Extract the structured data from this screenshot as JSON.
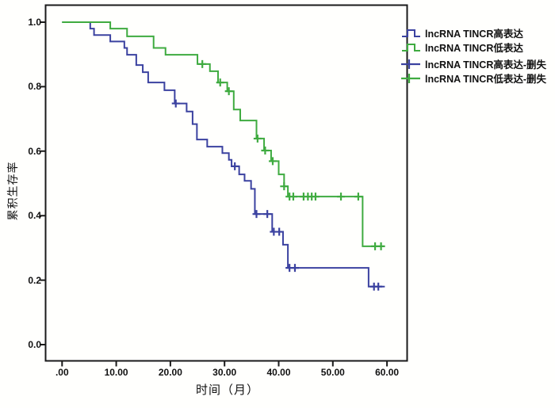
{
  "figure": {
    "background": "#ffffff",
    "axis_color": "#1a1a1a",
    "high_color": "#3b42a0",
    "low_color": "#3fab40"
  },
  "chart_data": {
    "type": "line",
    "subtype": "kaplan-meier-step",
    "title": "",
    "xlabel": "时间（月）",
    "ylabel": "累积生存率",
    "xlim": [
      0,
      60
    ],
    "ylim": [
      0.0,
      1.0
    ],
    "grid": false,
    "legend_position": "top-right-outside",
    "x_ticks": [
      {
        "value": 0,
        "label": ".00"
      },
      {
        "value": 10,
        "label": "10.00"
      },
      {
        "value": 20,
        "label": "20.00"
      },
      {
        "value": 30,
        "label": "30.00"
      },
      {
        "value": 40,
        "label": "40.00"
      },
      {
        "value": 50,
        "label": "50.00"
      },
      {
        "value": 60,
        "label": "60.00"
      }
    ],
    "y_ticks": [
      {
        "value": 1.0,
        "label": "1.0"
      },
      {
        "value": 0.8,
        "label": "0.8"
      },
      {
        "value": 0.6,
        "label": "0.6"
      },
      {
        "value": 0.4,
        "label": "0.4"
      },
      {
        "value": 0.2,
        "label": "0.2"
      },
      {
        "value": 0.0,
        "label": "0.0"
      }
    ],
    "series": [
      {
        "name": "lncRNA TINCR高表达",
        "color": "#3b42a0",
        "end_time": 59.6,
        "steps": [
          [
            0,
            1.0
          ],
          [
            5.2,
            0.98
          ],
          [
            5.9,
            0.96
          ],
          [
            8.9,
            0.94
          ],
          [
            11.5,
            0.92
          ],
          [
            12.0,
            0.899
          ],
          [
            13.7,
            0.867
          ],
          [
            14.9,
            0.845
          ],
          [
            15.9,
            0.813
          ],
          [
            18.9,
            0.789
          ],
          [
            20.8,
            0.748
          ],
          [
            23.0,
            0.723
          ],
          [
            24.1,
            0.684
          ],
          [
            24.9,
            0.636
          ],
          [
            26.8,
            0.614
          ],
          [
            29.6,
            0.594
          ],
          [
            30.8,
            0.573
          ],
          [
            31.3,
            0.553
          ],
          [
            32.7,
            0.528
          ],
          [
            33.7,
            0.508
          ],
          [
            34.9,
            0.483
          ],
          [
            35.6,
            0.405
          ],
          [
            38.8,
            0.35
          ],
          [
            40.8,
            0.31
          ],
          [
            41.7,
            0.238
          ],
          [
            56.6,
            0.18
          ]
        ],
        "censored": [
          [
            21.0,
            0.748
          ],
          [
            31.9,
            0.553
          ],
          [
            35.9,
            0.405
          ],
          [
            37.9,
            0.405
          ],
          [
            39.1,
            0.35
          ],
          [
            40.1,
            0.35
          ],
          [
            42.0,
            0.238
          ],
          [
            43.0,
            0.238
          ],
          [
            57.6,
            0.18
          ],
          [
            58.4,
            0.18
          ]
        ]
      },
      {
        "name": "lncRNA TINCR低表达",
        "color": "#3fab40",
        "end_time": 59.6,
        "steps": [
          [
            0,
            1.0
          ],
          [
            8.9,
            0.98
          ],
          [
            12.0,
            0.956
          ],
          [
            16.9,
            0.92
          ],
          [
            19.1,
            0.899
          ],
          [
            25.0,
            0.87
          ],
          [
            27.3,
            0.848
          ],
          [
            28.8,
            0.813
          ],
          [
            30.5,
            0.786
          ],
          [
            31.7,
            0.729
          ],
          [
            32.9,
            0.695
          ],
          [
            35.9,
            0.639
          ],
          [
            37.3,
            0.602
          ],
          [
            38.6,
            0.569
          ],
          [
            40.0,
            0.528
          ],
          [
            41.0,
            0.491
          ],
          [
            41.7,
            0.459
          ],
          [
            55.5,
            0.305
          ]
        ],
        "censored": [
          [
            25.9,
            0.87
          ],
          [
            29.2,
            0.813
          ],
          [
            30.8,
            0.786
          ],
          [
            36.1,
            0.639
          ],
          [
            37.5,
            0.602
          ],
          [
            38.9,
            0.569
          ],
          [
            41.0,
            0.491
          ],
          [
            42.0,
            0.459
          ],
          [
            42.7,
            0.459
          ],
          [
            44.6,
            0.459
          ],
          [
            45.4,
            0.459
          ],
          [
            46.1,
            0.459
          ],
          [
            46.8,
            0.459
          ],
          [
            51.5,
            0.459
          ],
          [
            54.7,
            0.459
          ],
          [
            57.8,
            0.305
          ],
          [
            58.9,
            0.305
          ]
        ]
      }
    ],
    "legend": {
      "items": [
        {
          "label": "lncRNA TINCR高表达",
          "marker": "step",
          "color": "#3b42a0"
        },
        {
          "label": "lncRNA TINCR低表达",
          "marker": "step",
          "color": "#3fab40"
        },
        {
          "label": "lncRNA TINCR高表达-删失",
          "marker": "censor",
          "color": "#3b42a0"
        },
        {
          "label": "lncRNA TINCR低表达-删失",
          "marker": "censor",
          "color": "#3fab40"
        }
      ]
    }
  }
}
